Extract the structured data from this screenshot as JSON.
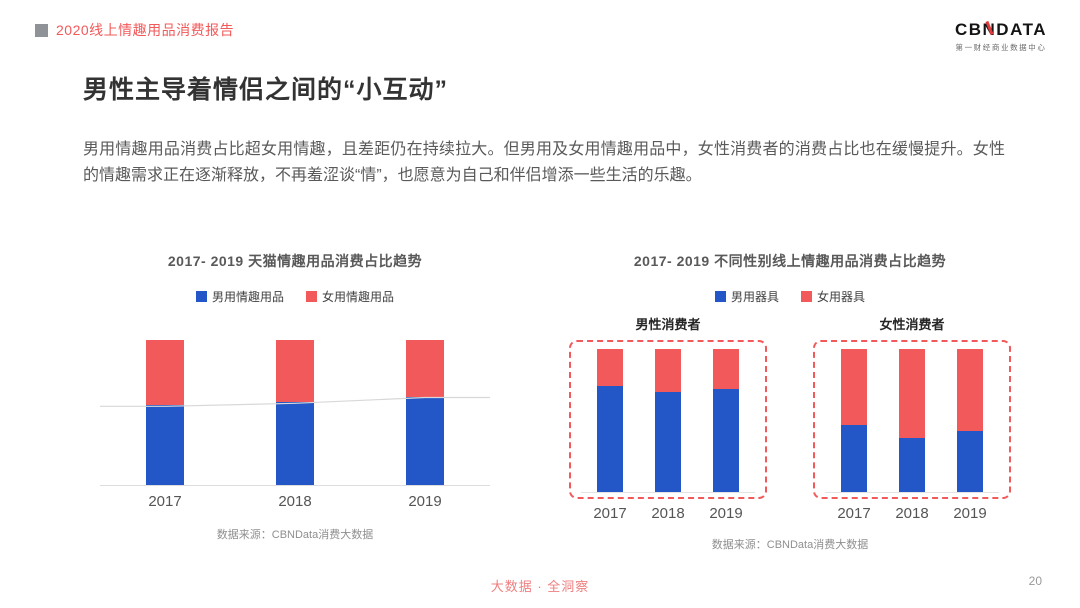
{
  "header": {
    "report_title": "2020线上情趣用品消费报告",
    "logo": {
      "prefix": "CB",
      "mid": "N",
      "suffix": "DATA",
      "subtitle": "第一财经商业数据中心"
    }
  },
  "title": "男性主导着情侣之间的“小互动”",
  "body": "男用情趣用品消费占比超女用情趣，且差距仍在持续拉大。但男用及女用情趣用品中，女性消费者的消费占比也在缓慢提升。女性的情趣需求正在逐渐释放，不再羞涩谈“情”，也愿意为自己和伴侣增添一些生活的乐趣。",
  "footer": {
    "slogan": "大数据 · 全洞察",
    "page_number": "20"
  },
  "colors": {
    "male_blue": "#2356c6",
    "female_red": "#f2595a",
    "dashed_border": "#f2595a",
    "trend_line": "#d8d8d8"
  },
  "chart_data": [
    {
      "type": "bar",
      "stacked": true,
      "title": "2017- 2019 天猫情趣用品消费占比趋势",
      "categories": [
        "2017",
        "2018",
        "2019"
      ],
      "series": [
        {
          "name": "男用情趣用品",
          "color": "#2356c6",
          "values": [
            55,
            57,
            61
          ]
        },
        {
          "name": "女用情趣用品",
          "color": "#f2595a",
          "values": [
            45,
            43,
            39
          ]
        }
      ],
      "ylim": [
        0,
        100
      ],
      "unit": "percent_share",
      "trend_line_follows": "男用情趣用品",
      "legend_position": "top",
      "grid": false,
      "source": "数据来源：CBNData消费大数据"
    },
    {
      "type": "bar",
      "stacked": true,
      "title": "2017- 2019 不同性别线上情趣用品消费占比趋势",
      "legend": [
        {
          "name": "男用器具",
          "color": "#2356c6"
        },
        {
          "name": "女用器具",
          "color": "#f2595a"
        }
      ],
      "groups": [
        {
          "label": "男性消费者",
          "categories": [
            "2017",
            "2018",
            "2019"
          ],
          "series": [
            {
              "name": "男用器具",
              "color": "#2356c6",
              "values": [
                74,
                70,
                72
              ]
            },
            {
              "name": "女用器具",
              "color": "#f2595a",
              "values": [
                26,
                30,
                28
              ]
            }
          ]
        },
        {
          "label": "女性消费者",
          "categories": [
            "2017",
            "2018",
            "2019"
          ],
          "series": [
            {
              "name": "男用器具",
              "color": "#2356c6",
              "values": [
                47,
                38,
                43
              ]
            },
            {
              "name": "女用器具",
              "color": "#f2595a",
              "values": [
                53,
                62,
                57
              ]
            }
          ]
        }
      ],
      "ylim": [
        0,
        100
      ],
      "unit": "percent_share",
      "legend_position": "top",
      "grid": false,
      "source": "数据来源：CBNData消费大数据"
    }
  ]
}
